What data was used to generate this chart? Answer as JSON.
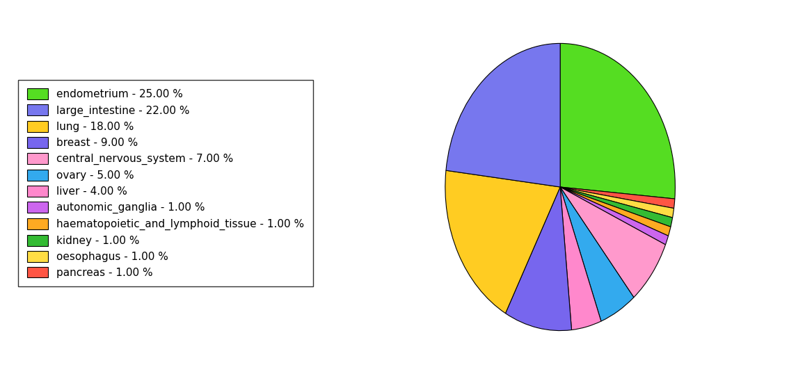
{
  "labels": [
    "endometrium",
    "pancreas",
    "oesophagus",
    "kidney",
    "haematopoietic_and_lymphoid_tissue",
    "autonomic_ganglia",
    "central_nervous_system",
    "ovary",
    "liver",
    "breast",
    "lung",
    "large_intestine"
  ],
  "values": [
    25,
    1,
    1,
    1,
    1,
    1,
    7,
    5,
    4,
    9,
    18,
    22
  ],
  "colors": [
    "#55dd22",
    "#ff5544",
    "#ffdd44",
    "#33bb33",
    "#ffaa22",
    "#cc66ee",
    "#ff99cc",
    "#33aaee",
    "#ff88cc",
    "#7766ee",
    "#ffcc22",
    "#7777ee"
  ],
  "legend_order_labels": [
    "endometrium",
    "large_intestine",
    "lung",
    "breast",
    "central_nervous_system",
    "ovary",
    "liver",
    "autonomic_ganglia",
    "haematopoietic_and_lymphoid_tissue",
    "kidney",
    "oesophagus",
    "pancreas"
  ],
  "legend_order_colors": [
    "#55dd22",
    "#7777ee",
    "#ffcc22",
    "#7766ee",
    "#ff99cc",
    "#33aaee",
    "#ff88cc",
    "#cc66ee",
    "#ffaa22",
    "#33bb33",
    "#ffdd44",
    "#ff5544"
  ],
  "legend_labels": [
    "endometrium - 25.00 %",
    "large_intestine - 22.00 %",
    "lung - 18.00 %",
    "breast - 9.00 %",
    "central_nervous_system - 7.00 %",
    "ovary - 5.00 %",
    "liver - 4.00 %",
    "autonomic_ganglia - 1.00 %",
    "haematopoietic_and_lymphoid_tissue - 1.00 %",
    "kidney - 1.00 %",
    "oesophagus - 1.00 %",
    "pancreas - 1.00 %"
  ],
  "startangle": 90,
  "figsize": [
    11.34,
    5.38
  ],
  "dpi": 100
}
